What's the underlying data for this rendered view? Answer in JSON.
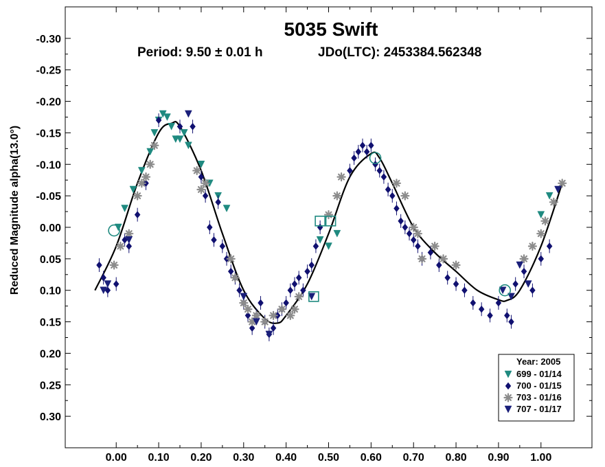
{
  "chart_data": {
    "type": "scatter",
    "title": "5035 Swift",
    "period_text": "Period: 9.50 ± 0.01 h",
    "epoch_text": "JDo(LTC): 2453384.562348",
    "xlabel": "",
    "ylabel": "Reduced Magnitude alpha(13.0°)",
    "xlim": [
      -0.12,
      1.12
    ],
    "ylim": [
      -0.35,
      0.35
    ],
    "y_inverted": true,
    "xticks": [
      0.0,
      0.1,
      0.2,
      0.3,
      0.4,
      0.5,
      0.6,
      0.7,
      0.8,
      0.9,
      1.0
    ],
    "xtick_labels": [
      "0.00",
      "0.10",
      "0.20",
      "0.30",
      "0.40",
      "0.50",
      "0.60",
      "0.70",
      "0.80",
      "0.90",
      "1.00"
    ],
    "yticks": [
      -0.3,
      -0.25,
      -0.2,
      -0.15,
      -0.1,
      -0.05,
      0.0,
      0.05,
      0.1,
      0.15,
      0.2,
      0.25,
      0.3
    ],
    "ytick_labels": [
      "-0.30",
      "-0.25",
      "-0.20",
      "-0.15",
      "-0.10",
      "-0.05",
      "0.00",
      "0.05",
      "0.10",
      "0.15",
      "0.20",
      "0.25",
      "0.30"
    ],
    "legend": {
      "title": "Year: 2005",
      "position": "bottom-right",
      "entries": [
        {
          "label": "699 - 01/14",
          "marker": "triangle-down",
          "color": "#1f8a80"
        },
        {
          "label": "700 - 01/15",
          "marker": "diamond",
          "color": "#101070"
        },
        {
          "label": "703 - 01/16",
          "marker": "asterisk",
          "color": "#8c8c8c"
        },
        {
          "label": "707 - 01/17",
          "marker": "triangle-down",
          "color": "#1a1f7a"
        }
      ]
    },
    "fit_curve": {
      "color": "#000000",
      "x": [
        -0.05,
        0.0,
        0.05,
        0.1,
        0.13,
        0.15,
        0.2,
        0.25,
        0.3,
        0.35,
        0.38,
        0.4,
        0.45,
        0.5,
        0.55,
        0.6,
        0.62,
        0.65,
        0.7,
        0.75,
        0.8,
        0.85,
        0.9,
        0.92,
        0.95,
        1.0,
        1.05
      ],
      "y": [
        0.1,
        0.03,
        -0.07,
        -0.15,
        -0.165,
        -0.16,
        -0.09,
        0.01,
        0.1,
        0.145,
        0.152,
        0.14,
        0.09,
        0.01,
        -0.08,
        -0.117,
        -0.11,
        -0.07,
        0.0,
        0.04,
        0.07,
        0.1,
        0.115,
        0.116,
        0.1,
        0.03,
        -0.07
      ]
    },
    "series": [
      {
        "name": "699 - 01/14",
        "marker": "triangle-down",
        "color": "#1f8a80",
        "x": [
          0.005,
          0.02,
          0.04,
          0.06,
          0.08,
          0.09,
          0.1,
          0.11,
          0.12,
          0.13,
          0.14,
          0.15,
          0.16,
          0.17,
          0.2,
          0.22,
          0.24,
          0.26,
          0.48,
          0.5,
          0.52,
          1.0,
          1.02
        ],
        "y": [
          0.0,
          -0.03,
          -0.06,
          -0.09,
          -0.12,
          -0.15,
          -0.17,
          -0.18,
          -0.175,
          -0.16,
          -0.14,
          -0.14,
          -0.15,
          -0.13,
          -0.1,
          -0.07,
          -0.05,
          -0.03,
          0.02,
          0.03,
          0.01,
          -0.02,
          -0.05
        ]
      },
      {
        "name": "700 - 01/15",
        "marker": "diamond",
        "color": "#101070",
        "x": [
          -0.04,
          -0.03,
          -0.02,
          0.0,
          0.02,
          0.03,
          0.05,
          0.07,
          0.1,
          0.15,
          0.18,
          0.2,
          0.21,
          0.22,
          0.23,
          0.24,
          0.25,
          0.26,
          0.27,
          0.28,
          0.29,
          0.3,
          0.31,
          0.32,
          0.33,
          0.34,
          0.35,
          0.36,
          0.37,
          0.38,
          0.39,
          0.4,
          0.41,
          0.42,
          0.43,
          0.44,
          0.45,
          0.46,
          0.47,
          0.48,
          0.55,
          0.56,
          0.57,
          0.58,
          0.59,
          0.6,
          0.61,
          0.62,
          0.63,
          0.64,
          0.65,
          0.66,
          0.67,
          0.68,
          0.69,
          0.7,
          0.71,
          0.72,
          0.74,
          0.76,
          0.78,
          0.8,
          0.82,
          0.84,
          0.86,
          0.88,
          0.9,
          0.92,
          0.93,
          0.94,
          0.96,
          0.98,
          1.0,
          1.02
        ],
        "y": [
          0.06,
          0.08,
          0.1,
          0.09,
          0.02,
          0.03,
          -0.02,
          -0.07,
          -0.17,
          -0.16,
          -0.16,
          -0.08,
          -0.05,
          0.0,
          0.02,
          -0.04,
          0.03,
          0.05,
          0.07,
          0.08,
          0.1,
          0.12,
          0.14,
          0.16,
          0.14,
          0.12,
          0.15,
          0.17,
          0.16,
          0.14,
          0.13,
          0.12,
          0.1,
          0.09,
          0.08,
          0.1,
          0.07,
          0.06,
          0.03,
          0.0,
          -0.09,
          -0.11,
          -0.12,
          -0.13,
          -0.12,
          -0.13,
          -0.1,
          -0.09,
          -0.08,
          -0.06,
          -0.05,
          -0.03,
          -0.01,
          0.0,
          0.01,
          0.02,
          0.03,
          0.05,
          0.04,
          0.06,
          0.08,
          0.09,
          0.1,
          0.12,
          0.13,
          0.14,
          0.12,
          0.14,
          0.15,
          0.09,
          0.07,
          0.1,
          0.05,
          0.03
        ]
      },
      {
        "name": "703 - 01/16",
        "marker": "asterisk",
        "color": "#8c8c8c",
        "x": [
          -0.005,
          0.01,
          0.03,
          0.05,
          0.06,
          0.07,
          0.08,
          0.09,
          0.19,
          0.2,
          0.21,
          0.27,
          0.28,
          0.3,
          0.31,
          0.32,
          0.33,
          0.35,
          0.37,
          0.39,
          0.41,
          0.42,
          0.43,
          0.5,
          0.52,
          0.53,
          0.66,
          0.68,
          0.7,
          0.71,
          0.72,
          0.75,
          0.77,
          0.8,
          0.96,
          0.98,
          1.0,
          1.01,
          1.03,
          1.05
        ],
        "y": [
          0.06,
          0.03,
          0.01,
          -0.05,
          -0.07,
          -0.08,
          -0.1,
          -0.13,
          -0.09,
          -0.06,
          -0.07,
          0.05,
          0.08,
          0.12,
          0.13,
          0.15,
          0.14,
          0.15,
          0.14,
          0.13,
          0.14,
          0.13,
          0.11,
          -0.02,
          -0.05,
          -0.08,
          -0.07,
          -0.05,
          0.0,
          0.01,
          0.05,
          0.03,
          0.05,
          0.06,
          0.05,
          0.03,
          0.01,
          -0.01,
          -0.04,
          -0.07
        ]
      },
      {
        "name": "707 - 01/17",
        "marker": "triangle-down",
        "color": "#1a1f7a",
        "x": [
          -0.03,
          -0.02,
          0.03,
          0.17,
          0.3,
          0.33,
          0.36,
          0.46,
          0.91,
          0.93,
          0.95,
          0.97,
          1.04
        ],
        "y": [
          0.1,
          0.09,
          0.02,
          -0.18,
          0.11,
          0.15,
          0.17,
          0.11,
          0.1,
          0.11,
          0.06,
          0.09,
          -0.06
        ]
      },
      {
        "name": "circle-markers",
        "marker": "circle",
        "color": "#1f8a80",
        "x": [
          -0.005,
          0.61,
          0.915
        ],
        "y": [
          0.005,
          -0.11,
          0.1
        ]
      },
      {
        "name": "square-markers",
        "marker": "square",
        "color": "#1f8a80",
        "x": [
          0.48,
          0.505,
          0.465
        ],
        "y": [
          -0.01,
          -0.01,
          0.11
        ]
      }
    ]
  }
}
